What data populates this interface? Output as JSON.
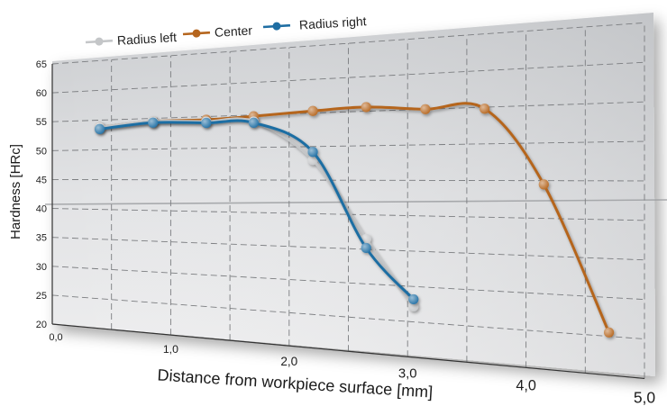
{
  "chart_data": {
    "type": "line",
    "title": "",
    "xlabel": "Distance from workpiece surface [mm]",
    "ylabel": "Hardness [HRc]",
    "xlim": [
      0,
      5
    ],
    "ylim": [
      20,
      65
    ],
    "x_ticks": [
      "0,0",
      "1,0",
      "2,0",
      "3,0",
      "4,0",
      "5,0"
    ],
    "y_ticks": [
      "20",
      "25",
      "30",
      "35",
      "40",
      "45",
      "50",
      "55",
      "60",
      "65"
    ],
    "grid": true,
    "legend_position": "top-left",
    "series": [
      {
        "name": "Radius left",
        "color": "#c4c6c8",
        "points": [
          [
            0.4,
            53.8
          ],
          [
            0.85,
            54.5
          ],
          [
            1.3,
            54.2
          ],
          [
            1.7,
            54.0
          ],
          [
            2.2,
            48.0
          ],
          [
            2.65,
            36.5
          ],
          [
            3.05,
            27.2
          ]
        ]
      },
      {
        "name": "Center",
        "color": "#b5651d",
        "points": [
          [
            0.4,
            53.8
          ],
          [
            0.85,
            54.5
          ],
          [
            1.3,
            54.5
          ],
          [
            1.7,
            54.8
          ],
          [
            2.2,
            55.3
          ],
          [
            2.65,
            55.6
          ],
          [
            3.15,
            55.0
          ],
          [
            3.65,
            54.8
          ],
          [
            4.15,
            44.5
          ],
          [
            4.7,
            25.5
          ]
        ]
      },
      {
        "name": "Radius right",
        "color": "#1f6ea3",
        "points": [
          [
            0.4,
            53.5
          ],
          [
            0.85,
            54.3
          ],
          [
            1.3,
            54.0
          ],
          [
            1.7,
            53.8
          ],
          [
            2.2,
            49.2
          ],
          [
            2.65,
            35.2
          ],
          [
            3.05,
            28.2
          ]
        ]
      }
    ]
  }
}
